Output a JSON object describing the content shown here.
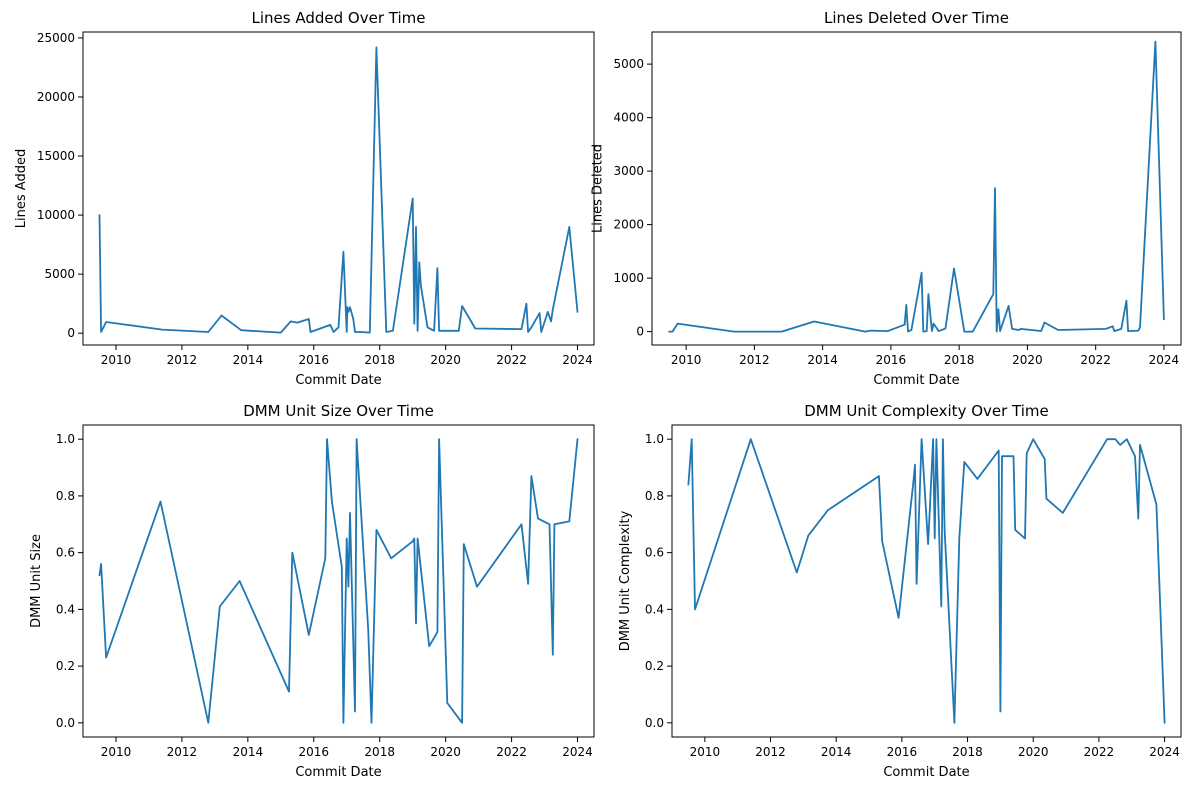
{
  "chart_data": [
    {
      "type": "line",
      "title": "Lines Added Over Time",
      "xlabel": "Commit Date",
      "ylabel": "Lines Added",
      "xlim": [
        2009.0,
        2024.5
      ],
      "ylim": [
        -1000,
        25500
      ],
      "xticks": [
        2010,
        2012,
        2014,
        2016,
        2018,
        2020,
        2022,
        2024
      ],
      "xtick_labels": [
        "2010",
        "2012",
        "2014",
        "2016",
        "2018",
        "2020",
        "2022",
        "2024"
      ],
      "yticks": [
        0,
        5000,
        10000,
        15000,
        20000,
        25000
      ],
      "ytick_labels": [
        "0",
        "5000",
        "10000",
        "15000",
        "20000",
        "25000"
      ],
      "color": "#1f77b4",
      "x": [
        2009.5,
        2009.55,
        2009.7,
        2011.4,
        2012.8,
        2013.2,
        2013.8,
        2015.0,
        2015.3,
        2015.5,
        2015.85,
        2015.9,
        2016.5,
        2016.6,
        2016.75,
        2016.9,
        2017.0,
        2017.02,
        2017.05,
        2017.1,
        2017.2,
        2017.25,
        2017.45,
        2017.7,
        2017.9,
        2018.2,
        2018.4,
        2019.0,
        2019.05,
        2019.1,
        2019.15,
        2019.2,
        2019.25,
        2019.45,
        2019.65,
        2019.75,
        2019.8,
        2020.4,
        2020.5,
        2020.9,
        2022.3,
        2022.45,
        2022.5,
        2022.6,
        2022.85,
        2022.9,
        2023.1,
        2023.2,
        2023.25,
        2023.75,
        2024.0
      ],
      "y": [
        10000,
        100,
        950,
        300,
        100,
        1500,
        250,
        50,
        1000,
        900,
        1200,
        100,
        700,
        100,
        500,
        6900,
        100,
        2200,
        1800,
        2200,
        1200,
        100,
        100,
        50,
        24200,
        100,
        200,
        11400,
        800,
        9000,
        200,
        6000,
        4000,
        500,
        200,
        5500,
        200,
        200,
        2300,
        400,
        350,
        2500,
        100,
        500,
        1700,
        100,
        1800,
        1000,
        2000,
        9000,
        1800
      ]
    },
    {
      "type": "line",
      "title": "Lines Deleted Over Time",
      "xlabel": "Commit Date",
      "ylabel": "Lines Deleted",
      "xlim": [
        2009.0,
        2024.5
      ],
      "ylim": [
        -250,
        5600
      ],
      "xticks": [
        2010,
        2012,
        2014,
        2016,
        2018,
        2020,
        2022,
        2024
      ],
      "xtick_labels": [
        "2010",
        "2012",
        "2014",
        "2016",
        "2018",
        "2020",
        "2022",
        "2024"
      ],
      "yticks": [
        0,
        1000,
        2000,
        3000,
        4000,
        5000
      ],
      "ytick_labels": [
        "0",
        "1000",
        "2000",
        "3000",
        "4000",
        "5000"
      ],
      "color": "#1f77b4",
      "x": [
        2009.5,
        2009.6,
        2009.75,
        2011.4,
        2012.8,
        2013.75,
        2015.25,
        2015.4,
        2015.9,
        2016.4,
        2016.45,
        2016.5,
        2016.6,
        2016.9,
        2016.95,
        2017.05,
        2017.1,
        2017.2,
        2017.25,
        2017.4,
        2017.6,
        2017.85,
        2018.15,
        2018.4,
        2019.0,
        2019.05,
        2019.1,
        2019.15,
        2019.2,
        2019.45,
        2019.55,
        2019.75,
        2019.8,
        2020.3,
        2020.4,
        2020.5,
        2020.9,
        2022.3,
        2022.5,
        2022.55,
        2022.75,
        2022.9,
        2022.95,
        2023.25,
        2023.3,
        2023.75,
        2024.0
      ],
      "y": [
        0,
        0,
        150,
        0,
        0,
        190,
        0,
        20,
        10,
        130,
        500,
        0,
        30,
        1100,
        0,
        10,
        700,
        10,
        150,
        10,
        60,
        1180,
        0,
        0,
        700,
        2680,
        0,
        420,
        10,
        480,
        50,
        30,
        50,
        20,
        10,
        170,
        30,
        50,
        100,
        10,
        50,
        580,
        10,
        20,
        80,
        5420,
        230
      ]
    },
    {
      "type": "line",
      "title": "DMM Unit Size Over Time",
      "xlabel": "Commit Date",
      "ylabel": "DMM Unit Size",
      "xlim": [
        2009.0,
        2024.5
      ],
      "ylim": [
        -0.05,
        1.05
      ],
      "xticks": [
        2010,
        2012,
        2014,
        2016,
        2018,
        2020,
        2022,
        2024
      ],
      "xtick_labels": [
        "2010",
        "2012",
        "2014",
        "2016",
        "2018",
        "2020",
        "2022",
        "2024"
      ],
      "yticks": [
        0.0,
        0.2,
        0.4,
        0.6,
        0.8,
        1.0
      ],
      "ytick_labels": [
        "0.0",
        "0.2",
        "0.4",
        "0.6",
        "0.8",
        "1.0"
      ],
      "color": "#1f77b4",
      "x": [
        2009.5,
        2009.55,
        2009.7,
        2011.35,
        2012.8,
        2013.15,
        2013.75,
        2015.25,
        2015.35,
        2015.85,
        2016.35,
        2016.4,
        2016.55,
        2016.85,
        2016.9,
        2017.0,
        2017.05,
        2017.1,
        2017.25,
        2017.3,
        2017.65,
        2017.75,
        2017.9,
        2018.35,
        2019.0,
        2019.05,
        2019.1,
        2019.15,
        2019.5,
        2019.75,
        2019.8,
        2020.05,
        2020.5,
        2020.55,
        2020.95,
        2022.3,
        2022.5,
        2022.6,
        2022.8,
        2023.15,
        2023.25,
        2023.3,
        2023.75,
        2024.0
      ],
      "y": [
        0.52,
        0.56,
        0.23,
        0.78,
        0.0,
        0.41,
        0.5,
        0.11,
        0.6,
        0.31,
        0.58,
        1.0,
        0.78,
        0.55,
        0.0,
        0.65,
        0.48,
        0.74,
        0.04,
        1.0,
        0.33,
        0.0,
        0.68,
        0.58,
        0.64,
        0.65,
        0.35,
        0.65,
        0.27,
        0.32,
        1.0,
        0.07,
        0.0,
        0.63,
        0.48,
        0.7,
        0.49,
        0.87,
        0.72,
        0.7,
        0.24,
        0.7,
        0.71,
        1.0
      ]
    },
    {
      "type": "line",
      "title": "DMM Unit Complexity Over Time",
      "xlabel": "Commit Date",
      "ylabel": "DMM Unit Complexity",
      "xlim": [
        2009.0,
        2024.5
      ],
      "ylim": [
        -0.05,
        1.05
      ],
      "xticks": [
        2010,
        2012,
        2014,
        2016,
        2018,
        2020,
        2022,
        2024
      ],
      "xtick_labels": [
        "2010",
        "2012",
        "2014",
        "2016",
        "2018",
        "2020",
        "2022",
        "2024"
      ],
      "yticks": [
        0.0,
        0.2,
        0.4,
        0.6,
        0.8,
        1.0
      ],
      "ytick_labels": [
        "0.0",
        "0.2",
        "0.4",
        "0.6",
        "0.8",
        "1.0"
      ],
      "color": "#1f77b4",
      "x": [
        2009.5,
        2009.6,
        2009.7,
        2011.4,
        2012.8,
        2013.15,
        2013.75,
        2015.3,
        2015.4,
        2015.9,
        2016.35,
        2016.4,
        2016.45,
        2016.6,
        2016.8,
        2016.85,
        2016.95,
        2017.0,
        2017.05,
        2017.2,
        2017.25,
        2017.3,
        2017.6,
        2017.75,
        2017.9,
        2018.3,
        2018.95,
        2019.0,
        2019.05,
        2019.1,
        2019.4,
        2019.45,
        2019.75,
        2019.8,
        2020.0,
        2020.35,
        2020.4,
        2020.9,
        2022.25,
        2022.5,
        2022.65,
        2022.85,
        2023.1,
        2023.2,
        2023.25,
        2023.75,
        2024.0
      ],
      "y": [
        0.84,
        1.0,
        0.4,
        1.0,
        0.53,
        0.66,
        0.75,
        0.87,
        0.64,
        0.37,
        0.85,
        0.91,
        0.49,
        1.0,
        0.63,
        0.75,
        1.0,
        0.65,
        1.0,
        0.41,
        1.0,
        0.68,
        0.0,
        0.65,
        0.92,
        0.86,
        0.96,
        0.04,
        0.94,
        0.94,
        0.94,
        0.68,
        0.65,
        0.95,
        1.0,
        0.93,
        0.79,
        0.74,
        1.0,
        1.0,
        0.98,
        1.0,
        0.94,
        0.72,
        0.98,
        0.77,
        0.0
      ]
    }
  ]
}
